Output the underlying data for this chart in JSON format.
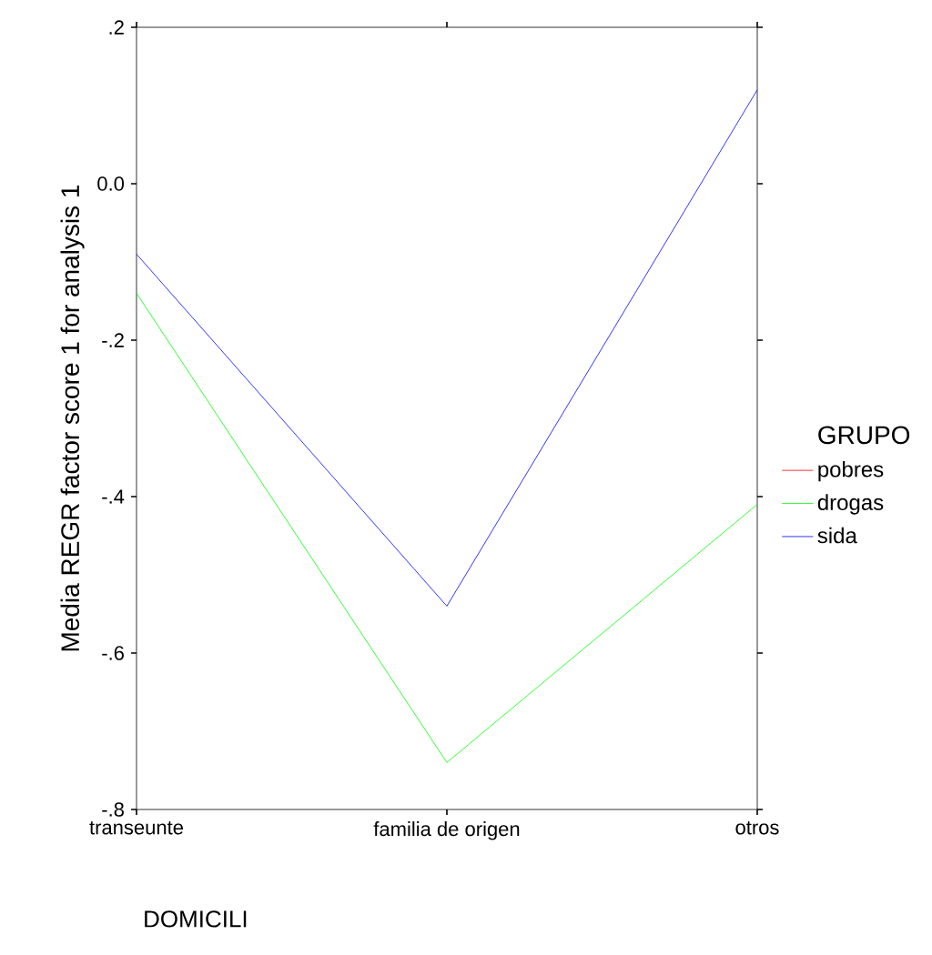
{
  "chart_data": {
    "type": "line",
    "xlabel": "DOMICILI",
    "ylabel": "Media REGR factor score   1 for analysis   1",
    "legend_title": "GRUPO",
    "legend": "right",
    "categories": [
      "transeunte",
      "familia de origen",
      "otros"
    ],
    "series": [
      {
        "name": "pobres",
        "color": "#ff0000",
        "values": [
          null,
          null,
          null
        ]
      },
      {
        "name": "drogas",
        "color": "#00ff00",
        "values": [
          -0.14,
          -0.74,
          -0.41
        ]
      },
      {
        "name": "sida",
        "color": "#0000ff",
        "values": [
          -0.09,
          -0.54,
          0.12
        ]
      }
    ],
    "ylim": [
      -0.8,
      0.2
    ],
    "yticks": [
      {
        "value": 0.2,
        "label": ".2"
      },
      {
        "value": 0.0,
        "label": "0.0"
      },
      {
        "value": -0.2,
        "label": "-.2"
      },
      {
        "value": -0.4,
        "label": "-.4"
      },
      {
        "value": -0.6,
        "label": "-.6"
      },
      {
        "value": -0.8,
        "label": "-.8"
      }
    ],
    "grid": false,
    "marker": "none",
    "line_style": "solid"
  }
}
